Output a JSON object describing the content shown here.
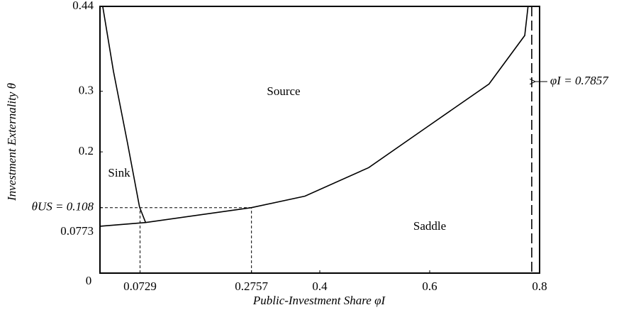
{
  "chart_data": {
    "type": "line",
    "x_label": "Public-Investment Share φI",
    "y_label": "Investment Externality θ",
    "xlim": [
      0,
      0.8
    ],
    "ylim": [
      0,
      0.44
    ],
    "xticks": [
      0,
      0.0729,
      0.2757,
      0.4,
      0.6,
      0.8
    ],
    "yticks": [
      0.0773,
      {
        "value": 0.108,
        "label": "θUS = 0.108"
      },
      0.2,
      0.3,
      0.44
    ],
    "curves": [
      {
        "x": [
          0.005,
          0.0245,
          0.05,
          0.072,
          0.083
        ],
        "y": [
          0.44,
          0.333,
          0.215,
          0.109,
          0.0835
        ]
      },
      {
        "x": [
          0,
          0.083,
          0.2757,
          0.373,
          0.489,
          0.592,
          0.708,
          0.773,
          0.779
        ],
        "y": [
          0.0773,
          0.0835,
          0.108,
          0.127,
          0.174,
          0.239,
          0.312,
          0.392,
          0.44
        ]
      }
    ],
    "vline": {
      "x": 0.7857,
      "label": "φI = 0.7857"
    },
    "regions": [
      "Source",
      "Sink",
      "Saddle"
    ],
    "color": "#000000"
  }
}
